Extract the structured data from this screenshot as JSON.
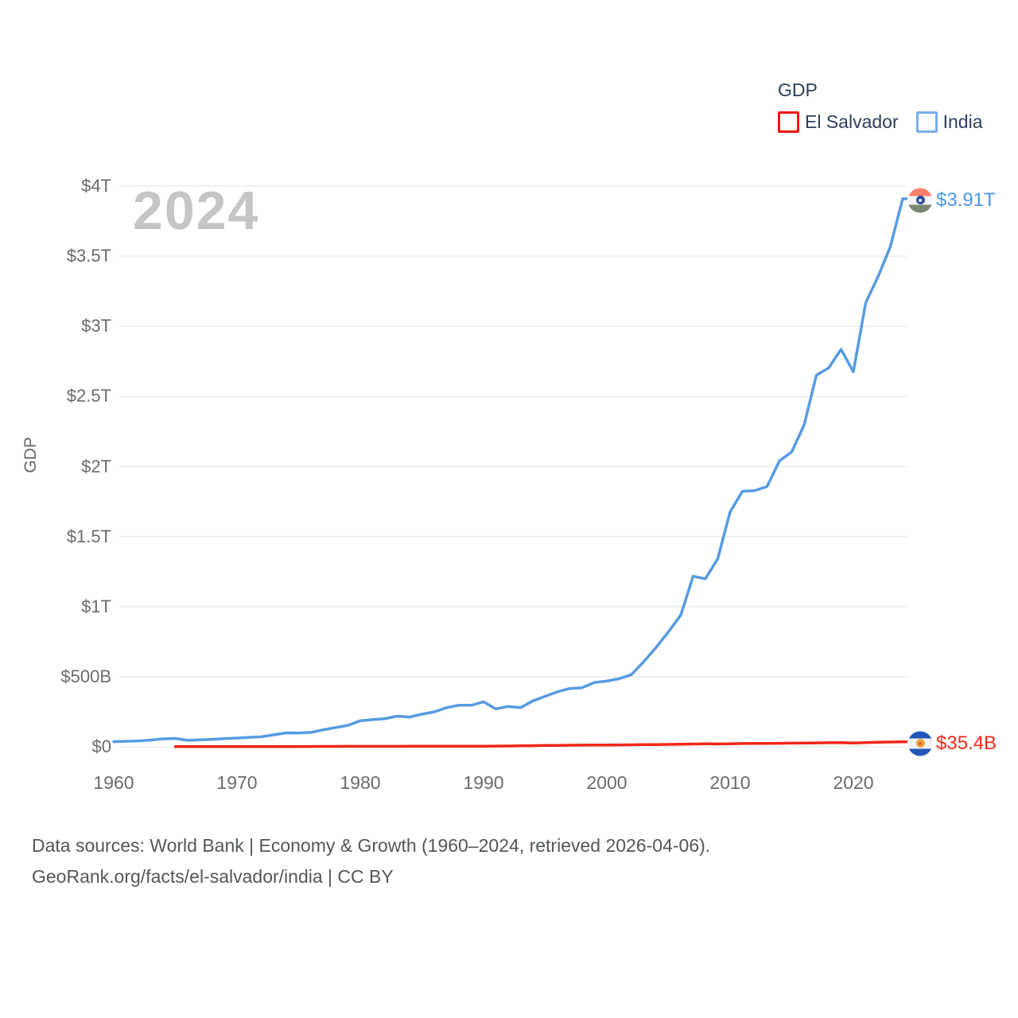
{
  "legend": {
    "title": "GDP",
    "entries": [
      {
        "label": "El Salvador",
        "swatch_color": "#EF1414"
      },
      {
        "label": "India",
        "swatch_color": "#7BAEE9"
      }
    ]
  },
  "watermark": "2024",
  "y_axis_title": "GDP",
  "footer": {
    "line1": "Data sources: World Bank | Economy & Growth (1960–2024, retrieved 2026-04-06).",
    "line2": "GeoRank.org/facts/el-salvador/india | CC BY"
  },
  "chart_data": {
    "type": "line",
    "title": "GDP",
    "xlabel": "",
    "ylabel": "GDP",
    "unit": "billions of current US$",
    "xlim": [
      1960,
      2024
    ],
    "ylim": [
      0,
      4000
    ],
    "grid": "horizontal",
    "legend_position": "top-right",
    "x_ticks": [
      1960,
      1970,
      1980,
      1990,
      2000,
      2010,
      2020
    ],
    "y_ticks": [
      {
        "value": 0,
        "label": "$0"
      },
      {
        "value": 500,
        "label": "$500B"
      },
      {
        "value": 1000,
        "label": "$1T"
      },
      {
        "value": 1500,
        "label": "$1.5T"
      },
      {
        "value": 2000,
        "label": "$2T"
      },
      {
        "value": 2500,
        "label": "$2.5T"
      },
      {
        "value": 3000,
        "label": "$3T"
      },
      {
        "value": 3500,
        "label": "$3.5T"
      },
      {
        "value": 4000,
        "label": "$4T"
      }
    ],
    "series": [
      {
        "name": "El Salvador",
        "slug": "el-salvador",
        "color": "#F1261B",
        "end_label": "$35.4B",
        "end_label_color": "#F42A1A",
        "flag_icon": "el-salvador-flag-icon",
        "flag": {
          "bands": [
            "#2157B8",
            "#EFF2F6",
            "#2157B8"
          ],
          "heights": [
            9,
            13,
            9
          ],
          "emblem": "#ECA53F",
          "emblem_inner": "#D95B31"
        },
        "start_year": 1965,
        "values": [
          0.94,
          0.99,
          1.03,
          1.07,
          1.13,
          1.15,
          1.21,
          1.27,
          1.45,
          1.69,
          1.88,
          2.3,
          2.85,
          3.07,
          3.44,
          3.57,
          3.47,
          3.45,
          3.68,
          3.91,
          3.84,
          3.93,
          4.14,
          4.47,
          4.66,
          4.8,
          5.25,
          5.95,
          6.94,
          8.09,
          9.5,
          10.32,
          11.13,
          12.01,
          12.46,
          13.13,
          13.81,
          14.31,
          15.05,
          15.8,
          17.09,
          18.55,
          20.1,
          21.43,
          20.66,
          21.42,
          23.14,
          23.81,
          24.35,
          25.05,
          26.05,
          26.8,
          28.0,
          29.03,
          30.0,
          27.5,
          29.75,
          32.49,
          34.02,
          35.4
        ]
      },
      {
        "name": "India",
        "slug": "india",
        "color": "#579BE2",
        "end_label": "$3.91T",
        "end_label_color": "#4A97E8",
        "flag_icon": "india-flag-icon",
        "flag": {
          "bands": [
            "#F8826A",
            "#F4F6F9",
            "#7A8674"
          ],
          "heights": [
            10,
            11,
            10
          ],
          "emblem": "#2B4F9E",
          "emblem_inner": "#EAF0FA"
        },
        "start_year": 1960,
        "values": [
          37.0,
          39.2,
          42.2,
          48.4,
          56.5,
          59.6,
          45.9,
          50.1,
          53.1,
          58.4,
          62.4,
          67.4,
          71.5,
          85.5,
          99.5,
          98.5,
          102.7,
          121.5,
          137.3,
          153.0,
          186.3,
          193.5,
          200.7,
          218.3,
          212.2,
          232.5,
          249.0,
          279.0,
          296.6,
          296.0,
          321.0,
          270.1,
          288.2,
          279.3,
          327.3,
          360.3,
          392.9,
          415.9,
          421.4,
          458.8,
          468.4,
          485.4,
          514.9,
          607.7,
          709.1,
          820.4,
          940.3,
          1216.7,
          1198.9,
          1341.9,
          1675.6,
          1823.1,
          1827.6,
          1856.7,
          2039.1,
          2103.6,
          2294.8,
          2651.5,
          2702.9,
          2835.6,
          2674.9,
          3167.3,
          3353.5,
          3567.6,
          3910.0
        ]
      }
    ]
  }
}
